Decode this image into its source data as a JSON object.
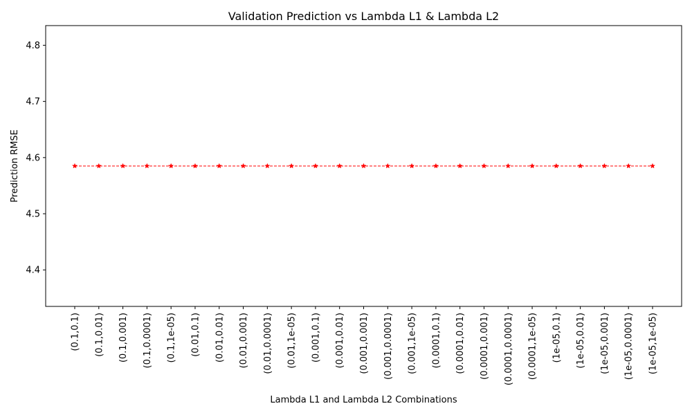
{
  "chart_data": {
    "type": "line",
    "title": "Validation Prediction vs Lambda L1 & Lambda L2",
    "xlabel": "Lambda L1 and Lambda L2 Combinations",
    "ylabel": "Prediction RMSE",
    "categories": [
      "(0.1,0.1)",
      "(0.1,0.01)",
      "(0.1,0.001)",
      "(0.1,0.0001)",
      "(0.1,1e-05)",
      "(0.01,0.1)",
      "(0.01,0.01)",
      "(0.01,0.001)",
      "(0.01,0.0001)",
      "(0.01,1e-05)",
      "(0.001,0.1)",
      "(0.001,0.01)",
      "(0.001,0.001)",
      "(0.001,0.0001)",
      "(0.001,1e-05)",
      "(0.0001,0.1)",
      "(0.0001,0.01)",
      "(0.0001,0.001)",
      "(0.0001,0.0001)",
      "(0.0001,1e-05)",
      "(1e-05,0.1)",
      "(1e-05,0.01)",
      "(1e-05,0.001)",
      "(1e-05,0.0001)",
      "(1e-05,1e-05)"
    ],
    "series": [
      {
        "values": [
          4.585,
          4.585,
          4.585,
          4.585,
          4.585,
          4.585,
          4.585,
          4.585,
          4.585,
          4.585,
          4.585,
          4.585,
          4.585,
          4.585,
          4.585,
          4.585,
          4.585,
          4.585,
          4.585,
          4.585,
          4.585,
          4.585,
          4.585,
          4.585,
          4.585
        ],
        "color": "#ff0000",
        "line_style": "dashed",
        "marker": "star"
      }
    ],
    "ylim": [
      4.335,
      4.835
    ],
    "yticks": [
      4.4,
      4.5,
      4.6,
      4.7,
      4.8
    ],
    "grid": false,
    "legend": "none"
  }
}
